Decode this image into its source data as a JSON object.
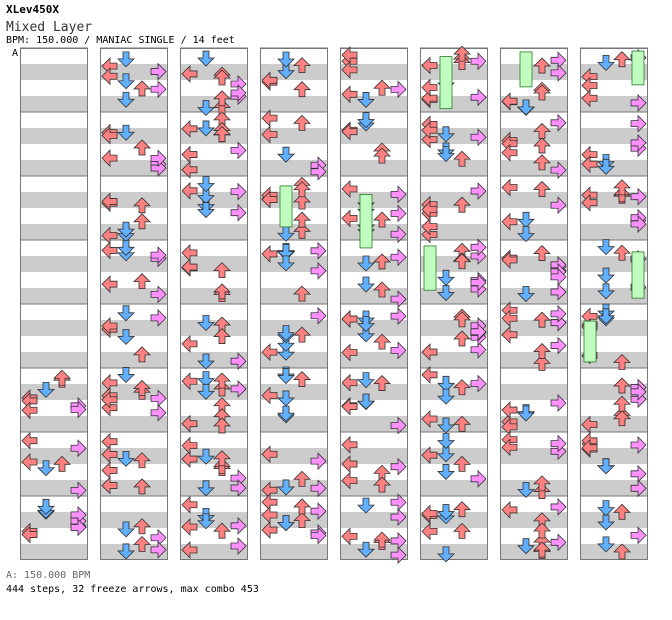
{
  "header": {
    "title": "XLev450X",
    "subtitle": "Mixed Layer",
    "meta": "BPM: 150.000 / MANIAC SINGLE / 14 feet",
    "marker": "A"
  },
  "footer": {
    "bpm": "A: 150.000 BPM",
    "stats": "444 steps, 32 freeze arrows, max combo 453"
  },
  "colors": {
    "left": "#ff8080",
    "down": "#60b0ff",
    "up": "#ff8080",
    "right": "#ff90ff",
    "freeze": "#c0ffc0",
    "stripe": "#cccccc",
    "border": "#777777"
  },
  "columns": 8,
  "measures_per_column": 8,
  "arrow_legend": {
    "left": "left-arrow",
    "down": "down-arrow",
    "up": "up-arrow",
    "right": "right-arrow"
  }
}
